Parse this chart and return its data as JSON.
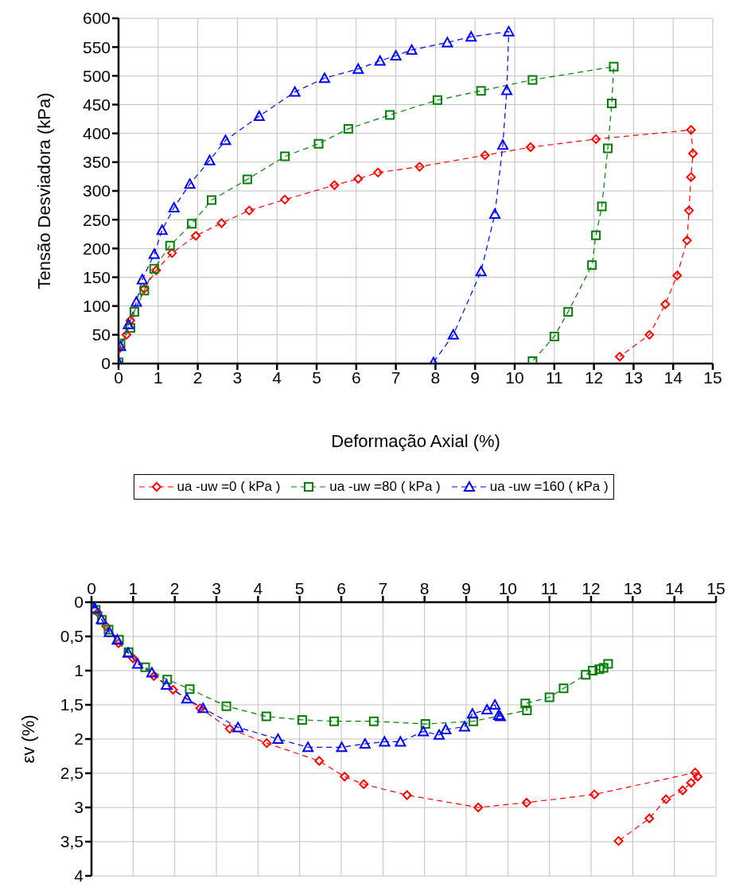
{
  "chart_data": [
    {
      "type": "line",
      "ylabel": "Tensão Desviadora (kPa)",
      "xlabel": "Deformação Axial (%)",
      "xlim": [
        0,
        15
      ],
      "xticks": [
        0,
        1,
        2,
        3,
        4,
        5,
        6,
        7,
        8,
        9,
        10,
        11,
        12,
        13,
        14,
        15
      ],
      "ylim": [
        0,
        600
      ],
      "yticks": [
        0,
        50,
        100,
        150,
        200,
        250,
        300,
        350,
        400,
        450,
        500,
        550,
        600
      ],
      "grid": true,
      "legend": "bottom",
      "line_style": "dashed",
      "series": [
        {
          "name": "ua -uw =0 ( kPa )",
          "color": "#ff0000",
          "marker": "diamond",
          "x": [
            0,
            0.2,
            0.3,
            0.65,
            0.95,
            1.35,
            1.95,
            2.6,
            3.3,
            4.2,
            5.45,
            6.05,
            6.55,
            7.6,
            9.25,
            10.4,
            12.05,
            14.45,
            14.5,
            14.45,
            14.4,
            14.35,
            14.1,
            13.8,
            13.4,
            12.65
          ],
          "values": [
            25,
            50,
            75,
            130,
            162,
            192,
            222,
            244,
            266,
            285,
            310,
            321,
            332,
            342,
            362,
            376,
            390,
            406,
            365,
            324,
            266,
            214,
            153,
            103,
            50,
            12
          ]
        },
        {
          "name": "ua -uw =80 ( kPa )",
          "color": "#008000",
          "marker": "square",
          "x": [
            0,
            0.05,
            0.3,
            0.4,
            0.65,
            0.9,
            1.3,
            1.85,
            2.35,
            3.25,
            4.2,
            5.05,
            5.8,
            6.85,
            8.05,
            9.15,
            10.45,
            12.5,
            12.45,
            12.35,
            12.2,
            12.05,
            11.95,
            11.35,
            11.0,
            10.45
          ],
          "values": [
            2,
            35,
            62,
            90,
            127,
            165,
            205,
            243,
            284,
            320,
            360,
            382,
            408,
            432,
            458,
            474,
            493,
            516,
            452,
            374,
            273,
            223,
            171,
            90,
            47,
            4
          ]
        },
        {
          "name": "ua -uw =160 ( kPa )",
          "color": "#0000ff",
          "marker": "triangle",
          "x": [
            0,
            0.05,
            0.25,
            0.45,
            0.6,
            0.9,
            1.1,
            1.4,
            1.8,
            2.3,
            2.7,
            3.55,
            4.45,
            5.2,
            6.05,
            6.6,
            7.0,
            7.4,
            8.3,
            8.9,
            9.85,
            9.8,
            9.7,
            9.5,
            9.15,
            8.45,
            7.95
          ],
          "values": [
            2,
            30,
            68,
            107,
            146,
            190,
            232,
            271,
            312,
            353,
            388,
            430,
            472,
            496,
            512,
            526,
            535,
            545,
            558,
            568,
            577,
            475,
            380,
            260,
            160,
            50,
            2
          ]
        }
      ]
    },
    {
      "type": "line",
      "ylabel": "εv (%)",
      "xlim": [
        0,
        15
      ],
      "xticks": [
        0,
        1,
        2,
        3,
        4,
        5,
        6,
        7,
        8,
        9,
        10,
        11,
        12,
        13,
        14,
        15
      ],
      "ylim": [
        4,
        0
      ],
      "yticks": [
        0,
        {
          "value": 0.5,
          "label": "0,5"
        },
        1,
        {
          "value": 1.5,
          "label": "1,5"
        },
        2,
        {
          "value": 2.5,
          "label": "2,5"
        },
        3,
        {
          "value": 3.5,
          "label": "3,5"
        },
        4
      ],
      "grid": true,
      "line_style": "dashed",
      "series": [
        {
          "color": "#ff0000",
          "marker": "diamond",
          "x": [
            0,
            0.15,
            0.35,
            0.65,
            1.0,
            1.5,
            1.96,
            2.61,
            3.32,
            4.21,
            5.47,
            6.08,
            6.54,
            7.58,
            9.29,
            10.45,
            12.08,
            14.5,
            14.56,
            14.4,
            14.2,
            13.8,
            13.4,
            12.66
          ],
          "values": [
            0,
            0.15,
            0.35,
            0.6,
            0.82,
            1.08,
            1.28,
            1.55,
            1.85,
            2.06,
            2.32,
            2.55,
            2.66,
            2.82,
            3.0,
            2.93,
            2.81,
            2.49,
            2.55,
            2.64,
            2.75,
            2.88,
            3.16,
            3.49
          ]
        },
        {
          "color": "#008000",
          "marker": "square",
          "x": [
            0,
            0.1,
            0.25,
            0.41,
            0.66,
            0.89,
            1.29,
            1.82,
            2.36,
            3.24,
            4.2,
            5.06,
            5.83,
            6.78,
            8.02,
            9.17,
            10.46,
            10.42,
            11.0,
            11.34,
            11.87,
            12.04,
            12.2,
            12.3,
            12.41
          ],
          "values": [
            0,
            0.11,
            0.26,
            0.4,
            0.55,
            0.73,
            0.95,
            1.13,
            1.27,
            1.52,
            1.67,
            1.72,
            1.74,
            1.74,
            1.78,
            1.74,
            1.58,
            1.48,
            1.39,
            1.26,
            1.06,
            1.0,
            0.98,
            0.96,
            0.9
          ]
        },
        {
          "color": "#0000ff",
          "marker": "triangle",
          "x": [
            0,
            0.08,
            0.24,
            0.43,
            0.62,
            0.88,
            1.11,
            1.45,
            1.8,
            2.29,
            2.68,
            3.52,
            4.48,
            5.2,
            6.01,
            6.57,
            7.04,
            7.42,
            7.97,
            8.35,
            8.51,
            8.96,
            9.15,
            9.5,
            9.69,
            9.78,
            9.82
          ],
          "values": [
            0.02,
            0.09,
            0.25,
            0.44,
            0.55,
            0.74,
            0.9,
            1.03,
            1.21,
            1.41,
            1.55,
            1.83,
            2.0,
            2.12,
            2.12,
            2.07,
            2.04,
            2.04,
            1.89,
            1.94,
            1.86,
            1.82,
            1.63,
            1.57,
            1.5,
            1.65,
            1.67
          ]
        }
      ]
    }
  ]
}
